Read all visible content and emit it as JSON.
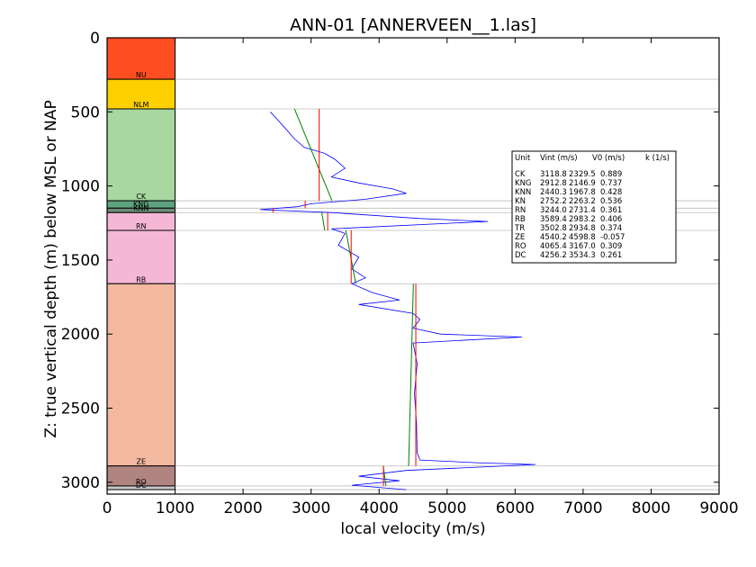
{
  "chart_data": {
    "type": "line",
    "title": "ANN-01 [ANNERVEEN__1.las]",
    "xlabel": "local velocity (m/s)",
    "ylabel": "Z: true vertical depth (m) below MSL or NAP",
    "xlim": [
      0,
      9000
    ],
    "ylim": [
      3080,
      0
    ],
    "x_ticks": [
      "0",
      "1000",
      "2000",
      "3000",
      "4000",
      "5000",
      "6000",
      "7000",
      "8000",
      "9000"
    ],
    "y_ticks": [
      "0",
      "500",
      "1000",
      "1500",
      "2000",
      "2500",
      "3000"
    ],
    "strat_column": {
      "x_range": [
        0,
        1000
      ],
      "units": [
        {
          "name": "NU",
          "top": 0,
          "base": 280,
          "color": "#ff4e22"
        },
        {
          "name": "NLM",
          "top": 280,
          "base": 480,
          "color": "#ffd000"
        },
        {
          "name": "CK",
          "top": 480,
          "base": 1100,
          "color": "#a8d8a0"
        },
        {
          "name": "KNG",
          "top": 1100,
          "base": 1150,
          "color": "#5ea27e"
        },
        {
          "name": "KNN",
          "top": 1150,
          "base": 1180,
          "color": "#6d8c78"
        },
        {
          "name": "RN",
          "top": 1180,
          "base": 1300,
          "color": "#f4b8d6"
        },
        {
          "name": "RB",
          "top": 1300,
          "base": 1660,
          "color": "#f4b8d6"
        },
        {
          "name": "ZE",
          "top": 1660,
          "base": 2890,
          "color": "#f2b8a0"
        },
        {
          "name": "RO",
          "top": 2890,
          "base": 3025,
          "color": "#b08480"
        },
        {
          "name": "DC",
          "top": 3025,
          "base": 3050,
          "color": "#c8c8c8"
        }
      ]
    },
    "boundary_depths": [
      280,
      480,
      1100,
      1150,
      1180,
      1300,
      1660,
      2890,
      3025,
      3050
    ],
    "series": [
      {
        "color": "#0000ff",
        "points": [
          [
            2400,
            500
          ],
          [
            2480,
            540
          ],
          [
            2600,
            600
          ],
          [
            2750,
            680
          ],
          [
            2900,
            740
          ],
          [
            3200,
            780
          ],
          [
            3350,
            820
          ],
          [
            3500,
            880
          ],
          [
            3300,
            940
          ],
          [
            3700,
            980
          ],
          [
            4200,
            1020
          ],
          [
            4400,
            1050
          ],
          [
            3800,
            1090
          ],
          [
            3000,
            1120
          ],
          [
            2800,
            1140
          ],
          [
            2250,
            1160
          ],
          [
            3300,
            1180
          ],
          [
            4600,
            1220
          ],
          [
            5600,
            1240
          ],
          [
            3300,
            1290
          ],
          [
            3500,
            1320
          ],
          [
            3400,
            1400
          ],
          [
            3700,
            1480
          ],
          [
            3600,
            1560
          ],
          [
            3800,
            1620
          ],
          [
            3600,
            1660
          ],
          [
            3900,
            1720
          ],
          [
            4300,
            1770
          ],
          [
            3700,
            1800
          ],
          [
            4500,
            1860
          ],
          [
            4600,
            1900
          ],
          [
            4500,
            1960
          ],
          [
            4900,
            2000
          ],
          [
            6100,
            2020
          ],
          [
            4500,
            2060
          ],
          [
            4560,
            2200
          ],
          [
            4520,
            2400
          ],
          [
            4550,
            2600
          ],
          [
            4560,
            2800
          ],
          [
            4600,
            2850
          ],
          [
            5500,
            2870
          ],
          [
            6300,
            2880
          ],
          [
            4400,
            2920
          ],
          [
            3700,
            2960
          ],
          [
            4300,
            2990
          ],
          [
            3600,
            3020
          ],
          [
            4400,
            3050
          ]
        ]
      }
    ],
    "interval_velocity": {
      "color": "#ff0000",
      "units": [
        {
          "vint": 3118.8,
          "top": 480,
          "base": 1100
        },
        {
          "vint": 2912.8,
          "top": 1100,
          "base": 1150
        },
        {
          "vint": 2440.3,
          "top": 1150,
          "base": 1180
        },
        {
          "vint": 3244.0,
          "top": 1180,
          "base": 1300
        },
        {
          "vint": 3589.4,
          "top": 1300,
          "base": 1660
        },
        {
          "vint": 4540.2,
          "top": 1660,
          "base": 2890
        },
        {
          "vint": 4065.4,
          "top": 2890,
          "base": 3025
        }
      ]
    },
    "linear_fits": {
      "color": "#008000",
      "segments": [
        {
          "v0": 2329.5,
          "k": 0.889,
          "top": 480,
          "base": 1100
        },
        {
          "v0": 2731.4,
          "k": 0.361,
          "top": 1180,
          "base": 1300
        },
        {
          "v0": 2983.2,
          "k": 0.406,
          "top": 1300,
          "base": 1660
        },
        {
          "v0": 4598.8,
          "k": -0.057,
          "top": 1660,
          "base": 2890
        },
        {
          "v0": 3167.0,
          "k": 0.309,
          "top": 2890,
          "base": 3025
        }
      ]
    },
    "table": {
      "headers": [
        "Unit",
        "Vint (m/s)",
        "V0 (m/s)",
        "k (1/s)"
      ],
      "rows": [
        [
          "CK",
          "3118.8",
          "2329.5",
          "0.889"
        ],
        [
          "KNG",
          "2912.8",
          "2146.9",
          "0.737"
        ],
        [
          "KNN",
          "2440.3",
          "1967.8",
          "0.428"
        ],
        [
          "KN",
          "2752.2",
          "2263.2",
          "0.536"
        ],
        [
          "RN",
          "3244.0",
          "2731.4",
          "0.361"
        ],
        [
          "RB",
          "3589.4",
          "2983.2",
          "0.406"
        ],
        [
          "TR",
          "3502.8",
          "2934.8",
          "0.374"
        ],
        [
          "ZE",
          "4540.2",
          "4598.8",
          "-0.057"
        ],
        [
          "RO",
          "4065.4",
          "3167.0",
          "0.309"
        ],
        [
          "DC",
          "4256.2",
          "3534.3",
          "0.261"
        ]
      ]
    }
  }
}
